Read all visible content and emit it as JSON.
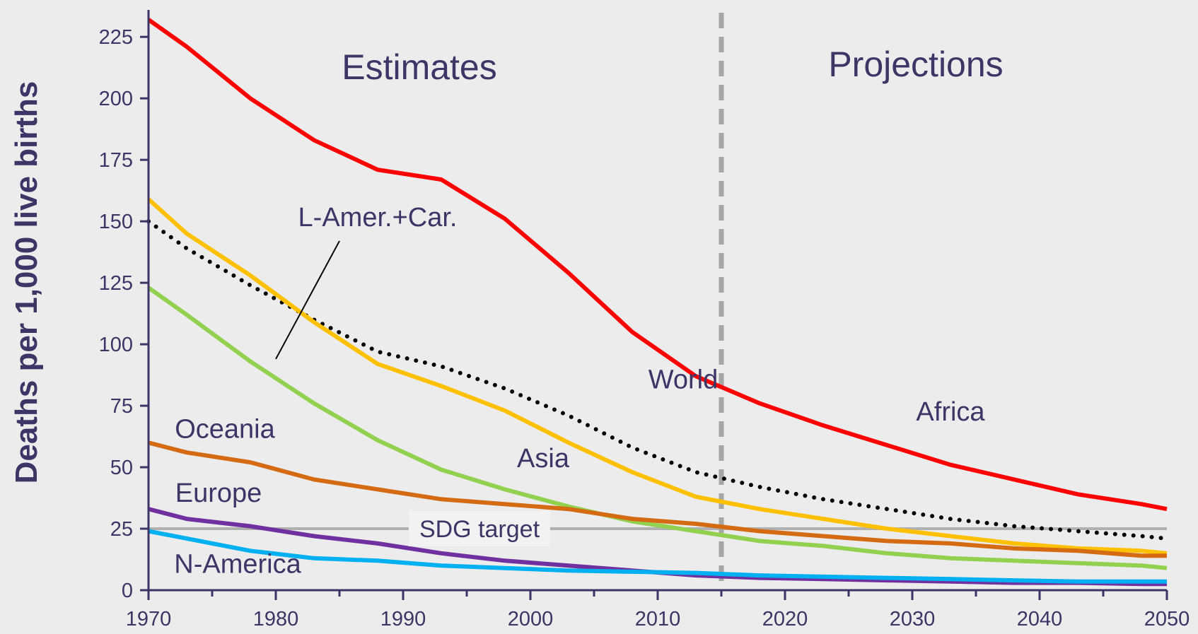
{
  "chart_data": {
    "type": "line",
    "title": "",
    "xlabel": "",
    "ylabel": "Deaths per 1,000 live births",
    "xlim": [
      1970,
      2050
    ],
    "ylim": [
      0,
      240
    ],
    "x_ticks": [
      1970,
      1980,
      1990,
      2000,
      2010,
      2020,
      2030,
      2040,
      2050
    ],
    "y_ticks": [
      0,
      25,
      50,
      75,
      100,
      125,
      150,
      175,
      200,
      225
    ],
    "grid": false,
    "sections": [
      {
        "label": "Estimates"
      },
      {
        "label": "Projections"
      }
    ],
    "divider_year": 2015,
    "target": {
      "label": "SDG target",
      "value": 25,
      "color": "#b0b0b0"
    },
    "series": [
      {
        "name": "Africa",
        "color": "#ff0000",
        "style": "solid",
        "x": [
          1970,
          1973,
          1978,
          1983,
          1988,
          1993,
          1998,
          2003,
          2008,
          2013,
          2018,
          2023,
          2028,
          2033,
          2038,
          2043,
          2048,
          2050
        ],
        "y": [
          232,
          221,
          200,
          183,
          171,
          167,
          151,
          129,
          105,
          87,
          76,
          67,
          59,
          51,
          45,
          39,
          35,
          33
        ]
      },
      {
        "name": "World",
        "color": "#000000",
        "style": "dotted",
        "x": [
          1970,
          1973,
          1978,
          1983,
          1988,
          1993,
          1998,
          2003,
          2008,
          2013,
          2018,
          2023,
          2028,
          2033,
          2038,
          2043,
          2048,
          2050
        ],
        "y": [
          150,
          139,
          124,
          110,
          97,
          91,
          82,
          71,
          58,
          48,
          42,
          37,
          33,
          29,
          26,
          24,
          22,
          21
        ]
      },
      {
        "name": "Asia",
        "color": "#ffc000",
        "style": "solid",
        "x": [
          1970,
          1973,
          1978,
          1983,
          1988,
          1993,
          1998,
          2003,
          2008,
          2013,
          2018,
          2023,
          2028,
          2033,
          2038,
          2043,
          2048,
          2050
        ],
        "y": [
          159,
          145,
          128,
          109,
          92,
          83,
          73,
          60,
          48,
          38,
          33,
          29,
          25,
          22,
          19,
          17,
          16,
          15
        ]
      },
      {
        "name": "L-Amer.+Car.",
        "color": "#92d050",
        "style": "solid",
        "x": [
          1970,
          1973,
          1978,
          1983,
          1988,
          1993,
          1998,
          2003,
          2008,
          2013,
          2018,
          2023,
          2028,
          2033,
          2038,
          2043,
          2048,
          2050
        ],
        "y": [
          123,
          112,
          93,
          76,
          61,
          49,
          41,
          34,
          28,
          24,
          20,
          18,
          15,
          13,
          12,
          11,
          10,
          9
        ]
      },
      {
        "name": "Oceania",
        "color": "#d46b12",
        "style": "solid",
        "x": [
          1970,
          1973,
          1978,
          1983,
          1988,
          1993,
          1998,
          2003,
          2008,
          2013,
          2018,
          2023,
          2028,
          2033,
          2038,
          2043,
          2048,
          2050
        ],
        "y": [
          60,
          56,
          52,
          45,
          41,
          37,
          35,
          33,
          29,
          27,
          24,
          22,
          20,
          19,
          17,
          16,
          14,
          14
        ]
      },
      {
        "name": "Europe",
        "color": "#7030a0",
        "style": "solid",
        "x": [
          1970,
          1973,
          1978,
          1983,
          1988,
          1993,
          1998,
          2003,
          2008,
          2013,
          2018,
          2023,
          2028,
          2033,
          2038,
          2043,
          2048,
          2050
        ],
        "y": [
          33,
          29,
          26,
          22,
          19,
          15,
          12,
          10,
          8,
          6,
          5,
          4.5,
          4,
          3.5,
          3,
          3,
          2.5,
          2.5
        ]
      },
      {
        "name": "N-America",
        "color": "#00b0f0",
        "style": "solid",
        "x": [
          1970,
          1973,
          1978,
          1983,
          1988,
          1993,
          1998,
          2003,
          2008,
          2013,
          2018,
          2023,
          2028,
          2033,
          2038,
          2043,
          2048,
          2050
        ],
        "y": [
          24,
          21,
          16,
          13,
          12,
          10,
          9,
          8,
          7.5,
          7,
          6,
          5.5,
          5,
          4.5,
          4,
          3.5,
          3.5,
          3.5
        ]
      }
    ],
    "annotations": [
      {
        "text": "L-Amer.+Car.",
        "x": 1988,
        "y": 148,
        "pointer_from": [
          1985,
          142
        ],
        "pointer_to": [
          1980,
          94
        ]
      },
      {
        "text": "World",
        "x": 2012,
        "y": 82
      },
      {
        "text": "Africa",
        "x": 2033,
        "y": 69
      },
      {
        "text": "Asia",
        "x": 2001,
        "y": 50
      },
      {
        "text": "Oceania",
        "x": 1976,
        "y": 62
      },
      {
        "text": "Europe",
        "x": 1975.5,
        "y": 36
      },
      {
        "text": "N-America",
        "x": 1977,
        "y": 7
      }
    ]
  }
}
